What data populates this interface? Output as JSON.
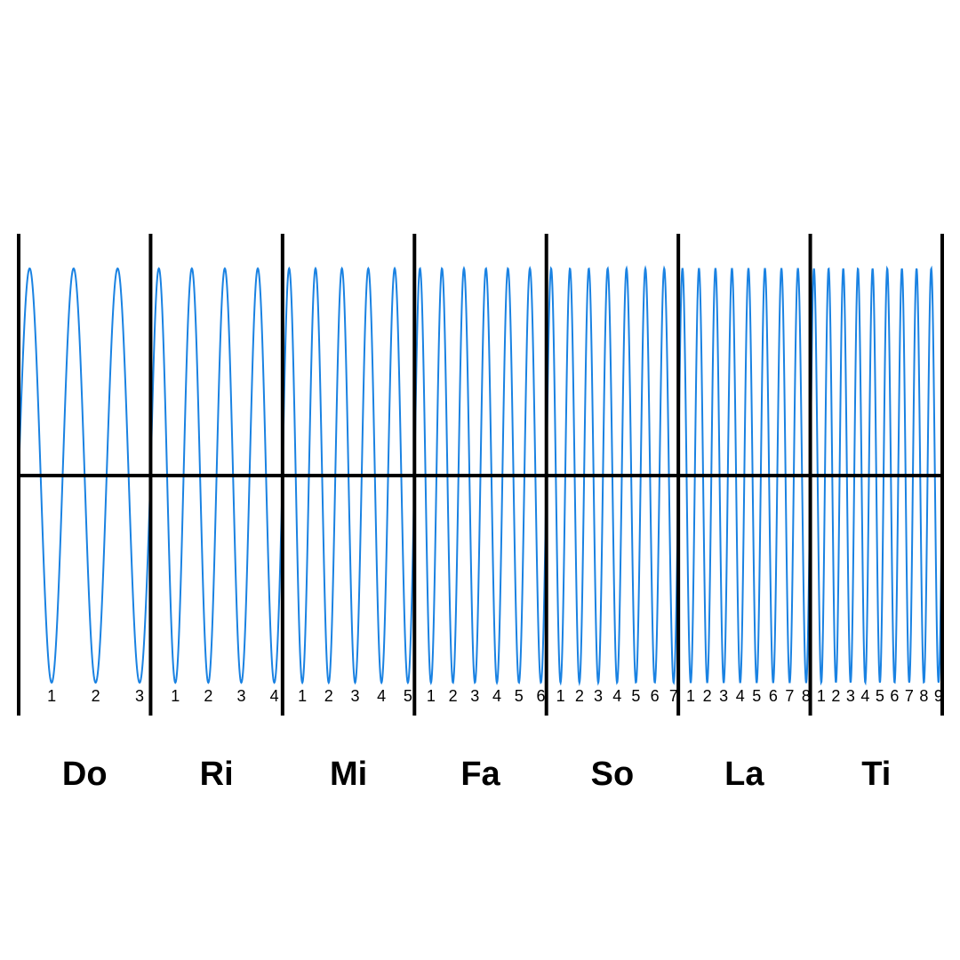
{
  "sections": [
    {
      "label": "Do",
      "counts": [
        1,
        2,
        3
      ]
    },
    {
      "label": "Ri",
      "counts": [
        1,
        2,
        3,
        4
      ]
    },
    {
      "label": "Mi",
      "counts": [
        1,
        2,
        3,
        4,
        5
      ]
    },
    {
      "label": "Fa",
      "counts": [
        1,
        2,
        3,
        4,
        5,
        6
      ]
    },
    {
      "label": "So",
      "counts": [
        1,
        2,
        3,
        4,
        5,
        6,
        7
      ]
    },
    {
      "label": "La",
      "counts": [
        1,
        2,
        3,
        4,
        5,
        6,
        7,
        8
      ]
    },
    {
      "label": "Ti",
      "counts": [
        1,
        2,
        3,
        4,
        5,
        6,
        7,
        8,
        9
      ]
    }
  ]
}
